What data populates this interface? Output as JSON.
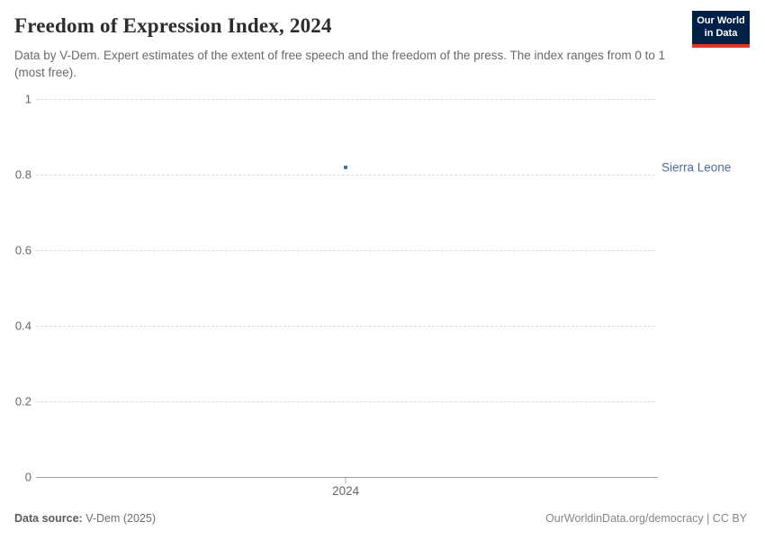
{
  "header": {
    "title": "Freedom of Expression Index, 2024",
    "subtitle": "Data by V-Dem. Expert estimates of the extent of free speech and the freedom of the press. The index ranges from 0 to 1 (most free).",
    "logo": {
      "line1": "Our World",
      "line2": "in Data",
      "bg_color": "#002147",
      "bar_color": "#D7382E"
    }
  },
  "chart_data": {
    "type": "scatter",
    "title": "Freedom of Expression Index, 2024",
    "x": [
      2024
    ],
    "series": [
      {
        "name": "Sierra Leone",
        "values": [
          0.82
        ],
        "color": "#4C6A9C"
      }
    ],
    "ylim": [
      0,
      1
    ],
    "yticks": [
      "0",
      "0.2",
      "0.4",
      "0.6",
      "0.8",
      "1"
    ],
    "xtick_label": "2024",
    "grid": "horizontal-dashed",
    "legend_position": "entity-label-right"
  },
  "footer": {
    "source_label": "Data source:",
    "source_value": "V-Dem (2025)",
    "right_text": "OurWorldinData.org/democracy | CC BY"
  }
}
